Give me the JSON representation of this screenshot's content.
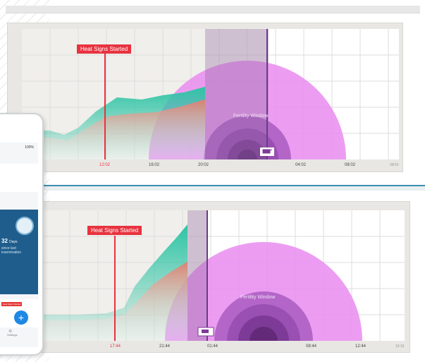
{
  "charts": [
    {
      "id": "top",
      "heat_label": "Heat Signs Started",
      "fertility_label": "Fertility Window",
      "x_ticks": [
        "12:02",
        "16:02",
        "20:02",
        "04:02",
        "08:02",
        "09/16"
      ],
      "colors": {
        "heat": "#e8323f",
        "teal": "#2ec4a5",
        "coral": "#e87a6b",
        "purple": "#7a4aa0",
        "pink": "#e98cf0"
      }
    },
    {
      "id": "bottom",
      "heat_label": "Heat Signs Started",
      "fertility_label": "Fertility Window",
      "x_ticks": [
        "17:44",
        "21:44",
        "01:44",
        "08:44",
        "12:44",
        "16:16"
      ],
      "colors": {
        "heat": "#e8323f",
        "teal": "#2ec4a5",
        "coral": "#e87a6b",
        "purple": "#7a4aa0",
        "pink": "#e98cf0"
      }
    }
  ],
  "phone": {
    "status": "100%",
    "days_value": "32",
    "days_unit": "Days",
    "days_caption": "since last insemination",
    "mini_label": "Heat Signs Started",
    "nav_label": "Settings",
    "fab_symbol": "+"
  }
}
